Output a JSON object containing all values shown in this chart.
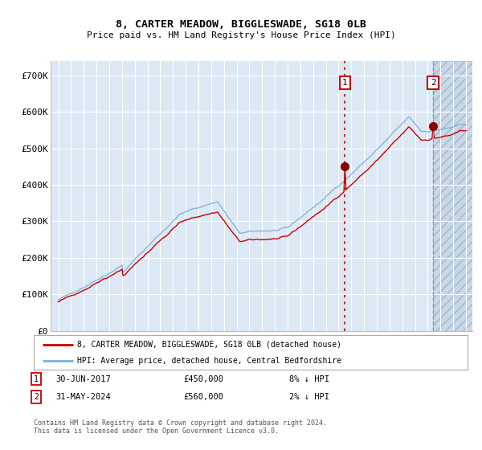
{
  "title": "8, CARTER MEADOW, BIGGLESWADE, SG18 0LB",
  "subtitle": "Price paid vs. HM Land Registry's House Price Index (HPI)",
  "yticks": [
    0,
    100000,
    200000,
    300000,
    400000,
    500000,
    600000,
    700000
  ],
  "ytick_labels": [
    "£0",
    "£100K",
    "£200K",
    "£300K",
    "£400K",
    "£500K",
    "£600K",
    "£700K"
  ],
  "hpi_color": "#7ab0d4",
  "price_color": "#cc0000",
  "sale1_year": 2017.5,
  "sale1_value": 450000,
  "sale2_year": 2024.42,
  "sale2_value": 560000,
  "legend_line1": "8, CARTER MEADOW, BIGGLESWADE, SG18 0LB (detached house)",
  "legend_line2": "HPI: Average price, detached house, Central Bedfordshire",
  "footnote": "Contains HM Land Registry data © Crown copyright and database right 2024.\nThis data is licensed under the Open Government Licence v3.0.",
  "background_color": "#ffffff",
  "plot_bg_color": "#dce9f5",
  "future_bg_color": "#c8d8e8"
}
